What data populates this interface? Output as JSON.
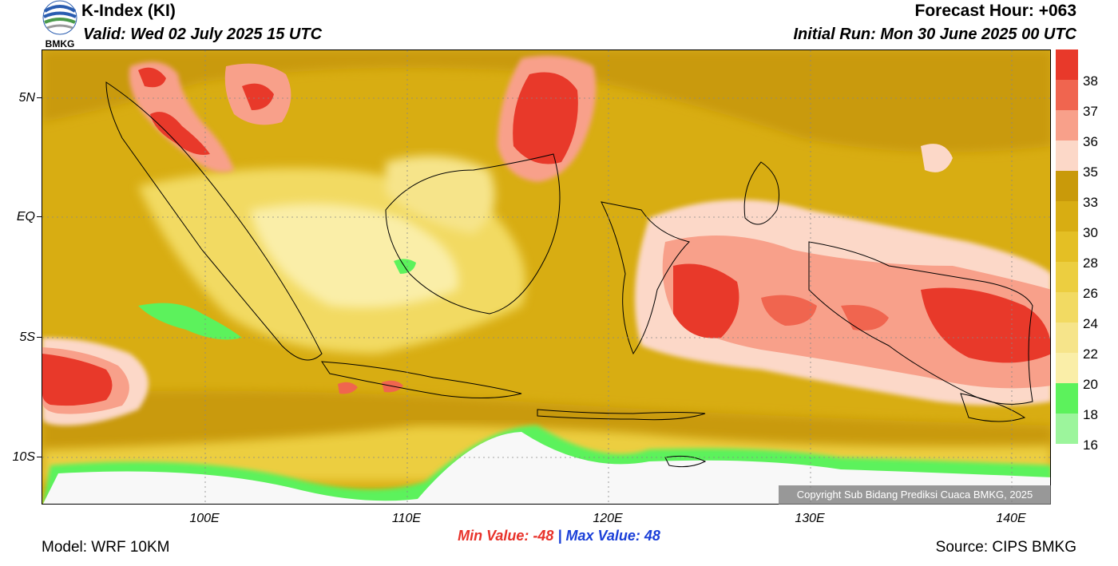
{
  "header": {
    "title": "K-Index (KI)",
    "valid": "Valid: Wed 02 July 2025 15 UTC",
    "forecast_hour": "Forecast Hour: +063",
    "initial_run": "Initial Run: Mon 30 June 2025 00 UTC",
    "logo_text": "BMKG"
  },
  "axes": {
    "lat_labels": [
      "5N",
      "EQ",
      "5S",
      "10S"
    ],
    "lon_labels": [
      "100E",
      "110E",
      "120E",
      "130E",
      "140E"
    ]
  },
  "legend": {
    "levels": [
      "38",
      "37",
      "36",
      "35",
      "33",
      "30",
      "28",
      "26",
      "24",
      "22",
      "20",
      "18",
      "16"
    ],
    "colors": [
      "#e8392a",
      "#f0654f",
      "#f8a08a",
      "#fcd8c8",
      "#c99a0a",
      "#d8ad12",
      "#e4bf24",
      "#ecce40",
      "#f2da62",
      "#f6e48a",
      "#faeea8",
      "#5cf25c",
      "#9cf59c",
      "#ffffff"
    ]
  },
  "stats": {
    "min_label": "Min Value: -48",
    "separator": "|",
    "max_label": "Max Value:  48"
  },
  "footer": {
    "model": "Model: WRF 10KM",
    "source": "Source: CIPS BMKG",
    "copyright": "Copyright Sub Bidang Prediksi Cuaca BMKG, 2025"
  }
}
